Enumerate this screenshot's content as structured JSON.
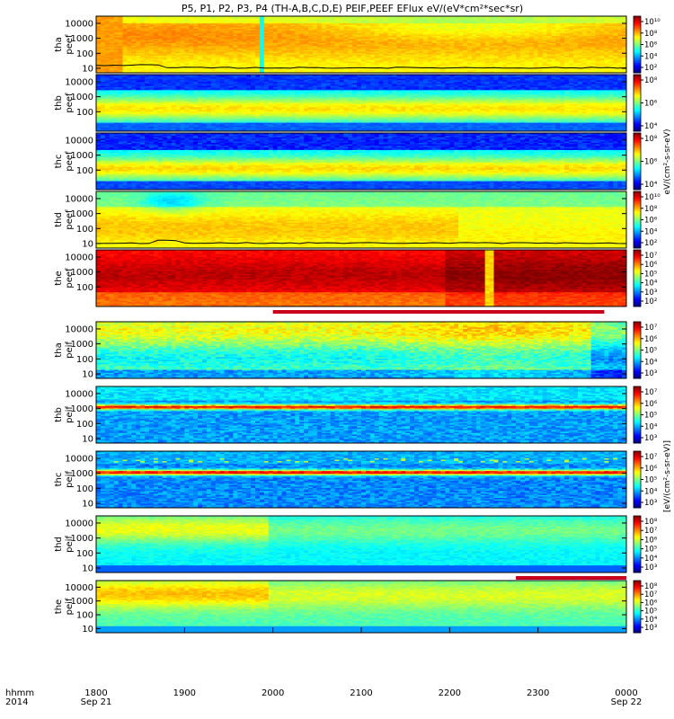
{
  "title": "P5, P1, P2, P3, P4 (TH-A,B,C,D,E) PEIF,PEEF EFlux eV/(eV*cm²*sec*sr)",
  "time_axis": {
    "row1_label": "hhmm",
    "row2_label": "2014",
    "ticks": [
      "1800",
      "1900",
      "2000",
      "2100",
      "2200",
      "2300",
      "0000"
    ],
    "tick_dates": [
      {
        "position": 0,
        "label": "Sep 21"
      },
      {
        "position": 6,
        "label": "Sep 22"
      }
    ]
  },
  "colorbar_axis_label_electron": "eV/(cm²-s-sr-eV)",
  "colorbar_axis_label_ion": "[eV/(cm²-s-sr-eV)]",
  "chart_data": {
    "type": "heatmap",
    "x_unit": "UT hhmm",
    "x_range": [
      "2014-09-21 18:00",
      "2014-09-22 00:00"
    ],
    "y_scale": "log",
    "y_range": [
      5,
      30000
    ],
    "color_scale": "log",
    "panels": [
      {
        "name": "tha peef",
        "line1": "tha",
        "line2": "peef",
        "yticks": [
          "10",
          "100",
          "1000",
          "10000"
        ],
        "colorbar_ticks": [
          "10²",
          "10⁴",
          "10⁶",
          "10⁸",
          "10¹⁰"
        ],
        "clog": [
          2,
          10
        ],
        "profile": "tha_e",
        "potential_line": true,
        "bar_below": false
      },
      {
        "name": "thb peef",
        "line1": "thb",
        "line2": "peef",
        "yticks": [
          "100",
          "1000",
          "10000"
        ],
        "colorbar_ticks": [
          "10⁴",
          "10⁶",
          "10⁸"
        ],
        "clog": [
          3,
          9
        ],
        "profile": "thb_e",
        "potential_line": false,
        "bar_below": false
      },
      {
        "name": "thc peef",
        "line1": "thc",
        "line2": "peef",
        "yticks": [
          "100",
          "1000",
          "10000"
        ],
        "colorbar_ticks": [
          "10⁴",
          "10⁶",
          "10⁸"
        ],
        "clog": [
          3,
          9
        ],
        "profile": "thc_e",
        "potential_line": false,
        "bar_below": false
      },
      {
        "name": "thd peef",
        "line1": "thd",
        "line2": "peef",
        "yticks": [
          "10",
          "100",
          "1000",
          "10000"
        ],
        "colorbar_ticks": [
          "10²",
          "10⁴",
          "10⁶",
          "10⁸",
          "10¹⁰"
        ],
        "clog": [
          2,
          10
        ],
        "profile": "thd_e",
        "potential_line": true,
        "bar_below": false
      },
      {
        "name": "the peef",
        "line1": "the",
        "line2": "peef",
        "yticks": [
          "100",
          "1000",
          "10000"
        ],
        "colorbar_ticks": [
          "10²",
          "10³",
          "10⁴",
          "10⁵",
          "10⁶",
          "10⁷"
        ],
        "clog": [
          1.5,
          7.3
        ],
        "profile": "the_e",
        "potential_line": false,
        "bar_below": true,
        "bar_range": [
          "2000",
          "2345"
        ]
      },
      {
        "name": "tha peif",
        "line1": "tha",
        "line2": "peif",
        "yticks": [
          "10",
          "100",
          "1000",
          "10000"
        ],
        "colorbar_ticks": [
          "10³",
          "10⁴",
          "10⁵",
          "10⁶",
          "10⁷"
        ],
        "clog": [
          2.5,
          7.5
        ],
        "profile": "tha_i",
        "potential_line": false,
        "bar_below": false
      },
      {
        "name": "thb peif",
        "line1": "thb",
        "line2": "peif",
        "yticks": [
          "10",
          "100",
          "1000",
          "10000"
        ],
        "colorbar_ticks": [
          "10³",
          "10⁴",
          "10⁵",
          "10⁶",
          "10⁷"
        ],
        "clog": [
          2.5,
          7.5
        ],
        "profile": "thb_i",
        "potential_line": false,
        "bar_below": false
      },
      {
        "name": "thc peif",
        "line1": "thc",
        "line2": "peif",
        "yticks": [
          "10",
          "100",
          "1000",
          "10000"
        ],
        "colorbar_ticks": [
          "10³",
          "10⁴",
          "10⁵",
          "10⁶",
          "10⁷"
        ],
        "clog": [
          2.5,
          7.5
        ],
        "profile": "thc_i",
        "potential_line": false,
        "bar_below": false
      },
      {
        "name": "thd peif",
        "line1": "thd",
        "line2": "peif",
        "yticks": [
          "10",
          "100",
          "1000",
          "10000"
        ],
        "colorbar_ticks": [
          "10³",
          "10⁴",
          "10⁵",
          "10⁶",
          "10⁷",
          "10⁸"
        ],
        "clog": [
          2.5,
          8.3
        ],
        "profile": "thd_i",
        "potential_line": false,
        "bar_below": true,
        "bar_range": [
          "2245",
          "0000"
        ]
      },
      {
        "name": "the peif",
        "line1": "the",
        "line2": "peif",
        "yticks": [
          "10",
          "100",
          "1000",
          "10000"
        ],
        "colorbar_ticks": [
          "10³",
          "10⁴",
          "10⁵",
          "10⁶",
          "10⁷",
          "10⁸"
        ],
        "clog": [
          2.5,
          8.3
        ],
        "profile": "the_i",
        "potential_line": false,
        "bar_below": false
      }
    ]
  }
}
